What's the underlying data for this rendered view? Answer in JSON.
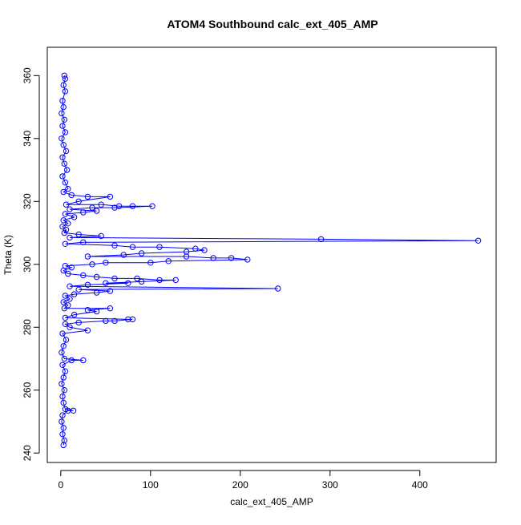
{
  "chart_data": {
    "type": "scatter",
    "title": "ATOM4 Southbound calc_ext_405_AMP",
    "xlabel": "calc_ext_405_AMP",
    "ylabel": "Theta (K)",
    "xlim": [
      -15,
      485
    ],
    "ylim": [
      237,
      369
    ],
    "x_ticks": [
      0,
      100,
      200,
      300,
      400
    ],
    "y_ticks": [
      240,
      260,
      280,
      300,
      320,
      340,
      360
    ],
    "x_tick_labels": [
      "0",
      "100",
      "200",
      "300",
      "400"
    ],
    "y_tick_labels": [
      "240",
      "260",
      "280",
      "300",
      "320",
      "340",
      "360"
    ],
    "connected": true,
    "marker": "open-circle",
    "grid": false,
    "legend": "none",
    "series_color": "#0000ff",
    "series": [
      {
        "points": [
          [
            4,
            360
          ],
          [
            5,
            359
          ],
          [
            3,
            357
          ],
          [
            5,
            355
          ],
          [
            2,
            352
          ],
          [
            3,
            350
          ],
          [
            1,
            348
          ],
          [
            4,
            346
          ],
          [
            2,
            344
          ],
          [
            5,
            342
          ],
          [
            1,
            340
          ],
          [
            3,
            338
          ],
          [
            6,
            336
          ],
          [
            2,
            334
          ],
          [
            4,
            332
          ],
          [
            7,
            330
          ],
          [
            2,
            328
          ],
          [
            5,
            326
          ],
          [
            8,
            324
          ],
          [
            3,
            323
          ],
          [
            12,
            322
          ],
          [
            30,
            321.5
          ],
          [
            55,
            321.5
          ],
          [
            20,
            320
          ],
          [
            6,
            319
          ],
          [
            45,
            319
          ],
          [
            65,
            318.5
          ],
          [
            80,
            318.5
          ],
          [
            102,
            318.5
          ],
          [
            60,
            318
          ],
          [
            35,
            318
          ],
          [
            10,
            317.5
          ],
          [
            40,
            317
          ],
          [
            25,
            316.5
          ],
          [
            5,
            316
          ],
          [
            15,
            315
          ],
          [
            3,
            314
          ],
          [
            8,
            313
          ],
          [
            2,
            312
          ],
          [
            6,
            311
          ],
          [
            4,
            310
          ],
          [
            20,
            309.5
          ],
          [
            45,
            309
          ],
          [
            10,
            308.5
          ],
          [
            290,
            308
          ],
          [
            465,
            307.5
          ],
          [
            25,
            307
          ],
          [
            5,
            306.5
          ],
          [
            60,
            306
          ],
          [
            80,
            305.5
          ],
          [
            110,
            305.5
          ],
          [
            150,
            305
          ],
          [
            160,
            304.5
          ],
          [
            140,
            304
          ],
          [
            90,
            303.5
          ],
          [
            70,
            303
          ],
          [
            30,
            302.5
          ],
          [
            140,
            302.5
          ],
          [
            170,
            302
          ],
          [
            190,
            302
          ],
          [
            208,
            301.5
          ],
          [
            120,
            301
          ],
          [
            100,
            300.5
          ],
          [
            50,
            300.5
          ],
          [
            35,
            300
          ],
          [
            5,
            299.5
          ],
          [
            12,
            299
          ],
          [
            3,
            298
          ],
          [
            8,
            297
          ],
          [
            25,
            296.5
          ],
          [
            40,
            296
          ],
          [
            60,
            295.5
          ],
          [
            85,
            295.5
          ],
          [
            110,
            295
          ],
          [
            128,
            295
          ],
          [
            90,
            294.5
          ],
          [
            50,
            294
          ],
          [
            75,
            294
          ],
          [
            30,
            293.5
          ],
          [
            10,
            293
          ],
          [
            242,
            292.3
          ],
          [
            20,
            292
          ],
          [
            55,
            291.5
          ],
          [
            40,
            291
          ],
          [
            15,
            290.5
          ],
          [
            5,
            290
          ],
          [
            10,
            289
          ],
          [
            3,
            288
          ],
          [
            8,
            287
          ],
          [
            4,
            286
          ],
          [
            55,
            286
          ],
          [
            30,
            285.5
          ],
          [
            40,
            285
          ],
          [
            15,
            284
          ],
          [
            5,
            283
          ],
          [
            75,
            282.5
          ],
          [
            80,
            282.5
          ],
          [
            60,
            282
          ],
          [
            50,
            282
          ],
          [
            20,
            281.5
          ],
          [
            5,
            281
          ],
          [
            10,
            280
          ],
          [
            30,
            279
          ],
          [
            2,
            278
          ],
          [
            6,
            276
          ],
          [
            3,
            274
          ],
          [
            1,
            272
          ],
          [
            4,
            270
          ],
          [
            25,
            269.5
          ],
          [
            12,
            269.5
          ],
          [
            2,
            268
          ],
          [
            5,
            266
          ],
          [
            3,
            264
          ],
          [
            1,
            262
          ],
          [
            4,
            260
          ],
          [
            2,
            258
          ],
          [
            3,
            256
          ],
          [
            5,
            254
          ],
          [
            14,
            253.5
          ],
          [
            8,
            253.5
          ],
          [
            2,
            252
          ],
          [
            1,
            250
          ],
          [
            3,
            248
          ],
          [
            2,
            246
          ],
          [
            4,
            244
          ],
          [
            3,
            242.5
          ]
        ]
      }
    ]
  }
}
